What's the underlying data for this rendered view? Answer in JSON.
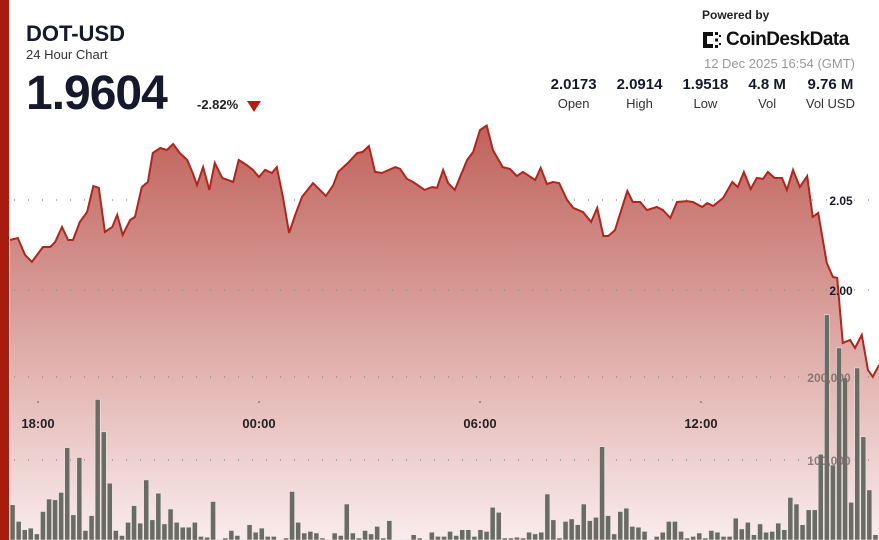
{
  "header": {
    "symbol": "DOT-USD",
    "subtitle": "24 Hour Chart",
    "price": "1.9604",
    "change": "-2.82%",
    "change_direction": "down",
    "powered_by": "Powered by",
    "brand": "CoinDeskData",
    "timestamp": "12 Dec 2025 16:54 (GMT)"
  },
  "stats": [
    {
      "value": "2.0173",
      "label": "Open"
    },
    {
      "value": "2.0914",
      "label": "High"
    },
    {
      "value": "1.9518",
      "label": "Low"
    },
    {
      "value": "4.8 M",
      "label": "Vol"
    },
    {
      "value": "9.76 M",
      "label": "Vol USD"
    }
  ],
  "colors": {
    "accent": "#a81b0f",
    "line": "#b0261d",
    "fill_top": "#c0615a",
    "fill_bottom": "#f9ecec",
    "volume_bar": "#6a6b63",
    "down": "#b01e12"
  },
  "chart_data": {
    "type": "line",
    "price_series": {
      "x": [
        "17:14",
        "17:27",
        "17:39",
        "17:50",
        "18:08",
        "18:20",
        "18:28",
        "18:39",
        "18:49",
        "18:57",
        "19:08",
        "19:20",
        "19:30",
        "19:39",
        "19:49",
        "20:01",
        "20:09",
        "20:18",
        "20:30",
        "20:38",
        "20:49",
        "20:59",
        "21:07",
        "21:19",
        "21:30",
        "21:40",
        "21:51",
        "22:03",
        "22:12",
        "22:19",
        "22:29",
        "22:39",
        "22:48",
        "23:00",
        "23:18",
        "23:27",
        "23:40",
        "23:50",
        "00:00",
        "00:10",
        "00:21",
        "00:29",
        "00:39",
        "00:49",
        "00:59",
        "01:10",
        "01:28",
        "01:49",
        "02:01",
        "02:09",
        "02:25",
        "02:40",
        "02:49",
        "02:59",
        "03:09",
        "03:20",
        "03:42",
        "03:50",
        "04:01",
        "04:11",
        "04:30",
        "04:42",
        "04:50",
        "05:00",
        "05:08",
        "05:19",
        "05:39",
        "05:49",
        "06:00",
        "06:11",
        "06:21",
        "06:37",
        "06:49",
        "07:00",
        "07:10",
        "07:30",
        "07:39",
        "07:49",
        "07:59",
        "08:09",
        "08:22",
        "08:32",
        "08:48",
        "09:01",
        "09:11",
        "09:21",
        "09:29",
        "09:40",
        "10:00",
        "10:09",
        "10:21",
        "10:32",
        "10:48",
        "10:58",
        "11:10",
        "11:21",
        "11:37",
        "11:47",
        "12:02",
        "12:10",
        "12:20",
        "12:36",
        "12:51",
        "13:00",
        "13:10",
        "13:21",
        "13:31",
        "13:41",
        "13:49",
        "14:00",
        "14:12",
        "14:20",
        "14:30",
        "14:41",
        "14:53",
        "15:02",
        "15:11",
        "15:25",
        "15:35",
        "15:42",
        "15:51",
        "16:03",
        "16:11",
        "16:22",
        "16:32",
        "16:40",
        "16:50"
      ],
      "y": [
        2.0278,
        2.0289,
        2.0194,
        2.0156,
        2.0239,
        2.0239,
        2.0267,
        2.035,
        2.0278,
        2.0278,
        2.0378,
        2.0433,
        2.0578,
        2.0567,
        2.0322,
        2.035,
        2.0417,
        2.0306,
        2.0389,
        2.0406,
        2.0572,
        2.06,
        2.0761,
        2.0789,
        2.0778,
        2.0811,
        2.0761,
        2.0722,
        2.065,
        2.0583,
        2.0683,
        2.0556,
        2.0706,
        2.0622,
        2.06,
        2.0722,
        2.0694,
        2.0667,
        2.0628,
        2.0667,
        2.065,
        2.0683,
        2.0517,
        2.0317,
        2.0417,
        2.0517,
        2.0594,
        2.0522,
        2.0583,
        2.0656,
        2.0706,
        2.0761,
        2.0767,
        2.08,
        2.0656,
        2.065,
        2.0683,
        2.0672,
        2.0617,
        2.06,
        2.0556,
        2.0572,
        2.0567,
        2.0667,
        2.0594,
        2.0556,
        2.0722,
        2.0767,
        2.0889,
        2.0914,
        2.0778,
        2.0683,
        2.0672,
        2.0633,
        2.0656,
        2.0611,
        2.0678,
        2.0589,
        2.06,
        2.0594,
        2.05,
        2.0456,
        2.0433,
        2.0378,
        2.0456,
        2.03,
        2.03,
        2.0333,
        2.055,
        2.0489,
        2.0489,
        2.0444,
        2.0461,
        2.0444,
        2.04,
        2.0489,
        2.0494,
        2.0489,
        2.0461,
        2.0483,
        2.0467,
        2.0511,
        2.06,
        2.0572,
        2.0656,
        2.0561,
        2.0622,
        2.0617,
        2.0656,
        2.0622,
        2.0622,
        2.0556,
        2.0667,
        2.0572,
        2.0633,
        2.0406,
        2.0428,
        2.015,
        2.0072,
        2.0067,
        1.9706,
        1.9722,
        1.9678,
        1.975,
        1.9556,
        1.9518,
        1.9583
      ]
    },
    "volume_series": [
      46000,
      26000,
      16000,
      18000,
      11000,
      38000,
      53000,
      52000,
      61000,
      115000,
      34000,
      103000,
      15000,
      33000,
      173000,
      134000,
      72000,
      15000,
      9000,
      25000,
      45000,
      24000,
      76000,
      28000,
      60000,
      23000,
      41000,
      25000,
      19000,
      19000,
      25000,
      8000,
      7000,
      50000,
      4000,
      6000,
      15000,
      9000,
      4000,
      22000,
      13000,
      18000,
      8000,
      8000,
      4000,
      6000,
      62000,
      25000,
      12000,
      14000,
      12000,
      6000,
      4000,
      12000,
      9000,
      47000,
      12000,
      6000,
      15000,
      11000,
      20000,
      6000,
      27000,
      4000,
      4000,
      4000,
      10000,
      6000,
      4000,
      13000,
      8000,
      8000,
      14000,
      9000,
      16000,
      16000,
      8000,
      16000,
      14000,
      43000,
      37000,
      6000,
      6000,
      7000,
      6000,
      13000,
      11000,
      13000,
      59000,
      28000,
      6000,
      26000,
      29000,
      22000,
      47000,
      27000,
      31000,
      116000,
      33000,
      11000,
      38000,
      42000,
      20000,
      19000,
      14000,
      4000,
      8000,
      13000,
      26000,
      26000,
      14000,
      6000,
      8000,
      12000,
      6000,
      15000,
      13000,
      8000,
      8000,
      30000,
      17000,
      25000,
      10000,
      23000,
      13000,
      14000,
      24000,
      16000,
      55000,
      47000,
      22000,
      40000,
      40000,
      107000,
      275000,
      94000,
      235000,
      199000,
      49000,
      211000,
      128000,
      64000,
      10000
    ],
    "x_ticks": [
      "18:00",
      "00:00",
      "06:00",
      "12:00"
    ],
    "y_ticks": [
      {
        "value": 2.05,
        "label": "2.05"
      },
      {
        "value": 2.0,
        "label": "2.00"
      }
    ],
    "volume_ticks": [
      {
        "value": 200000,
        "label": "200,000"
      },
      {
        "value": 100000,
        "label": "100,000"
      }
    ],
    "grid": "dotted-horizontal",
    "legend": "none"
  }
}
